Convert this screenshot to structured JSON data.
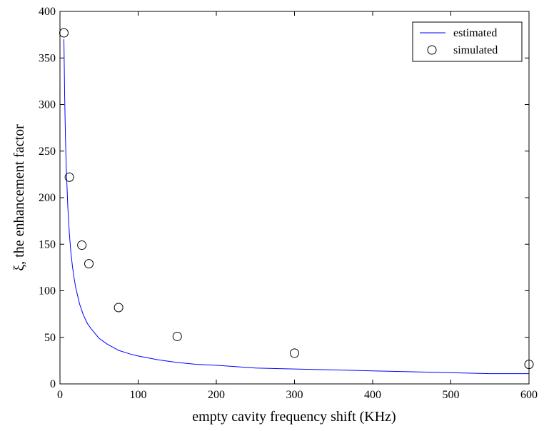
{
  "chart_data": {
    "type": "line",
    "title": "",
    "xlabel": "empty cavity frequency shift (KHz)",
    "ylabel": "ξ, the enhancement factor",
    "xlim": [
      0,
      600
    ],
    "ylim": [
      0,
      400
    ],
    "xticks": [
      0,
      100,
      200,
      300,
      400,
      500,
      600
    ],
    "yticks": [
      0,
      50,
      100,
      150,
      200,
      250,
      300,
      350,
      400
    ],
    "grid": false,
    "legend_position": "top-right",
    "series": [
      {
        "name": "estimated",
        "style": "line",
        "color": "#0000ff",
        "x": [
          5,
          6,
          7,
          8,
          10,
          12,
          14,
          16,
          18,
          20,
          25,
          30,
          35,
          40,
          50,
          60,
          75,
          90,
          100,
          125,
          150,
          175,
          200,
          250,
          300,
          350,
          400,
          450,
          500,
          550,
          600
        ],
        "y": [
          370,
          308,
          264,
          232,
          190,
          162,
          141,
          126,
          114,
          104,
          86,
          74,
          65,
          59,
          49,
          43,
          36,
          32,
          30,
          26,
          23,
          21,
          20,
          17,
          16,
          15,
          14,
          13,
          12,
          11,
          11
        ]
      },
      {
        "name": "simulated",
        "style": "marker",
        "marker": "circle",
        "color": "#000000",
        "x": [
          5,
          12,
          28,
          37,
          75,
          150,
          300,
          600
        ],
        "y": [
          377,
          222,
          149,
          129,
          82,
          51,
          33,
          21
        ]
      }
    ]
  }
}
